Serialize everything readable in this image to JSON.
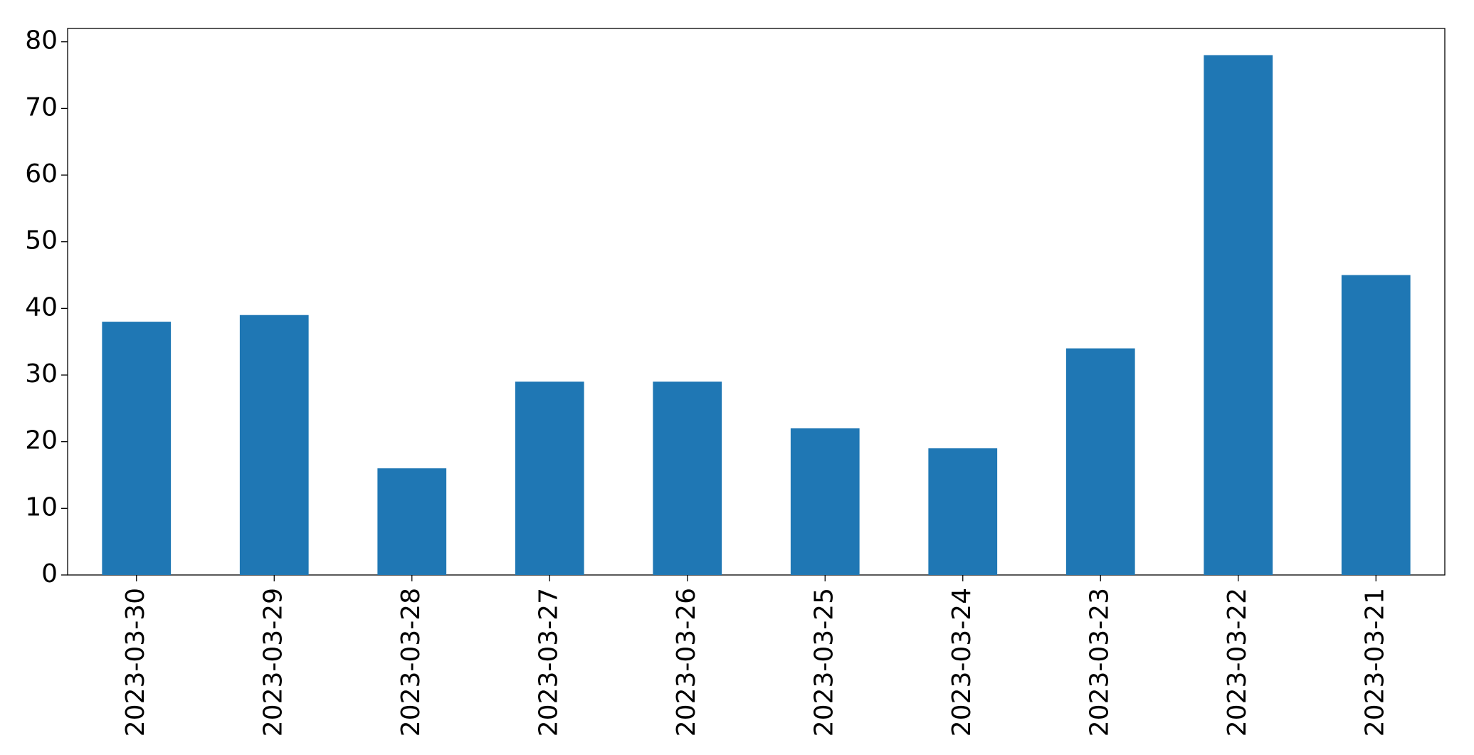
{
  "chart_data": {
    "type": "bar",
    "categories": [
      "2023-03-30",
      "2023-03-29",
      "2023-03-28",
      "2023-03-27",
      "2023-03-26",
      "2023-03-25",
      "2023-03-24",
      "2023-03-23",
      "2023-03-22",
      "2023-03-21"
    ],
    "values": [
      38,
      39,
      16,
      29,
      29,
      22,
      19,
      34,
      78,
      45
    ],
    "color": "#1f77b4",
    "ylim": [
      0,
      82
    ],
    "yticks": [
      0,
      10,
      20,
      30,
      40,
      50,
      60,
      70,
      80
    ],
    "grid": false
  }
}
